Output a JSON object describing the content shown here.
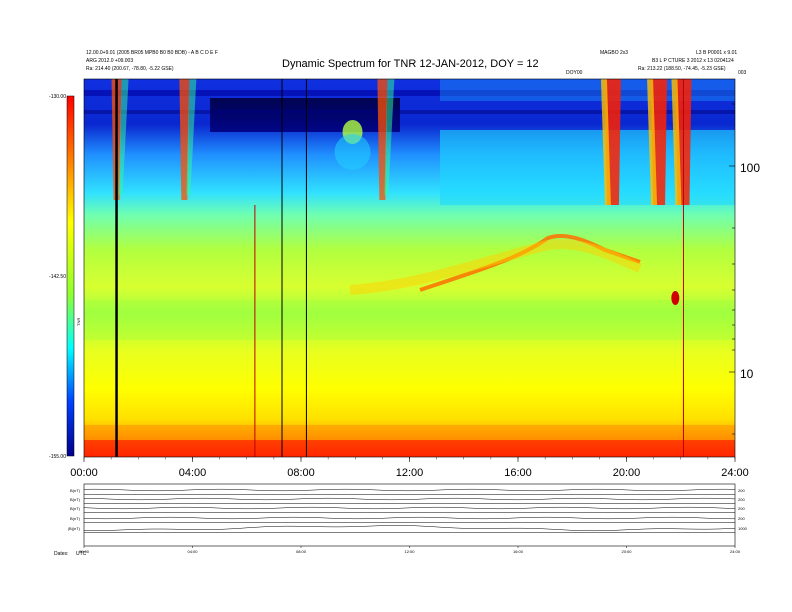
{
  "chart_data": {
    "type": "heatmap",
    "title": "Dynamic Spectrum for TNR 12-JAN-2012, DOY = 12",
    "header_left": [
      "12.00.0+9.01 (2005 BR05 MPB0 B0 B0 BDB) - A B C D E F",
      "ARG 2012.0 +09.003",
      "Ra:  214.40 (200.67, -78.80, -5.22 GSE)"
    ],
    "header_right_top": [
      "MAGBO 2x3",
      "L3 B P0001 x 9.01"
    ],
    "header_right_mid": "B3 L P CTURE 3  2012 x 13 0204124",
    "header_right_bottom": "Ra:  213.22 (188.50, -74.45, -5.23 GSE)",
    "header_small_mid": "DOY00",
    "header_small_right": "003",
    "colorbar": {
      "label": "TNR",
      "ticks": [
        "-130.00",
        "-142.50",
        "-155.00"
      ],
      "range": [
        -155,
        -130
      ]
    },
    "x_axis": {
      "ticks": [
        "00:00",
        "04:00",
        "08:00",
        "12:00",
        "16:00",
        "20:00",
        "24:00"
      ],
      "range_hours": [
        0,
        24
      ]
    },
    "y_axis": {
      "scale": "log",
      "ticks": [
        "100",
        "10"
      ]
    },
    "bursts": [
      {
        "t": 1.2,
        "label": "storm"
      },
      {
        "t": 3.7,
        "label": "storm"
      },
      {
        "t": 9.9,
        "label": "blob"
      },
      {
        "t": 11.0,
        "label": "storm"
      },
      {
        "t": 19.5,
        "label": "burst"
      },
      {
        "t": 21.2,
        "label": "burst"
      },
      {
        "t": 22.1,
        "label": "burst"
      }
    ],
    "spikes": [
      1.2,
      6.3,
      7.3,
      8.2,
      22.1
    ],
    "panel_labels": [
      "B(nT)",
      "B(nT)",
      "B(nT)",
      "B(nT)",
      "|B|(nT)"
    ],
    "panel_scales": [
      "200",
      "200",
      "200",
      "200",
      "1000"
    ],
    "footer_label": "Dates:",
    "footer_value": "UTC"
  }
}
